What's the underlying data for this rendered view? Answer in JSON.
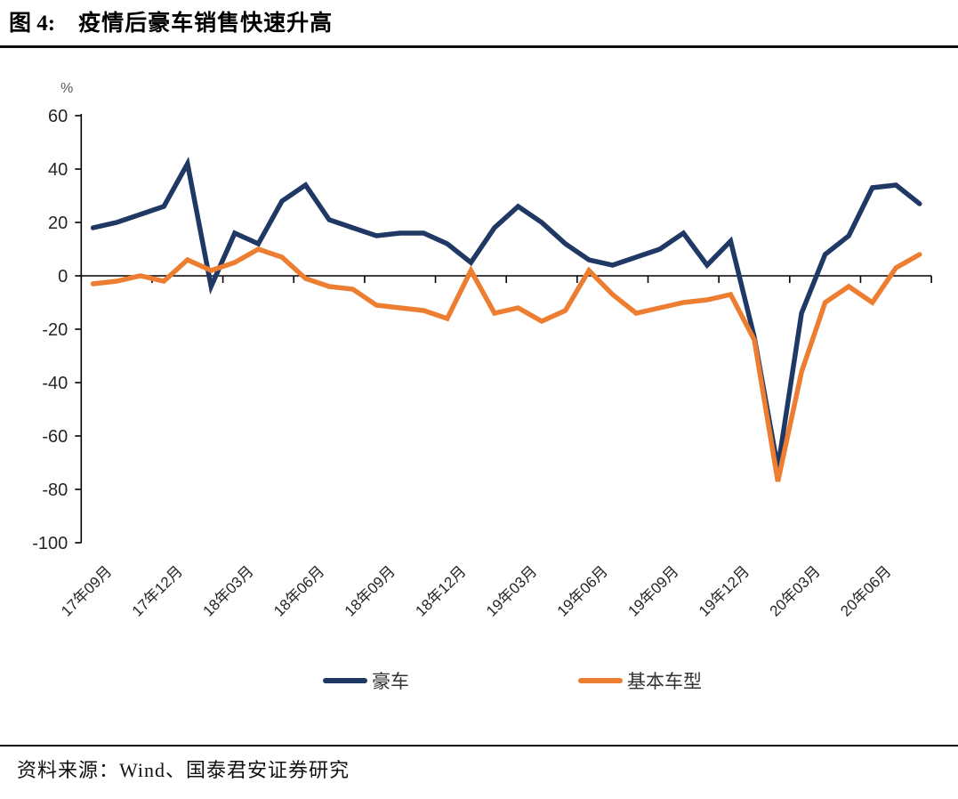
{
  "header": {
    "figure_label": "图 4:",
    "title": "疫情后豪车销售快速升高"
  },
  "chart_data": {
    "type": "line",
    "title": "疫情后豪车销售快速升高",
    "unit_label": "%",
    "ylim": [
      -100,
      60
    ],
    "y_ticks": [
      60,
      40,
      20,
      0,
      -20,
      -40,
      -60,
      -80,
      -100
    ],
    "grid": false,
    "legend_position": "bottom",
    "categories": [
      "17年09月",
      "17年10月",
      "17年11月",
      "17年12月",
      "18年01月",
      "18年02月",
      "18年03月",
      "18年04月",
      "18年05月",
      "18年06月",
      "18年07月",
      "18年08月",
      "18年09月",
      "18年10月",
      "18年11月",
      "18年12月",
      "19年01月",
      "19年02月",
      "19年03月",
      "19年04月",
      "19年05月",
      "19年06月",
      "19年07月",
      "19年08月",
      "19年09月",
      "19年10月",
      "19年11月",
      "19年12月",
      "20年01月",
      "20年02月",
      "20年03月",
      "20年04月",
      "20年05月",
      "20年06月",
      "20年07月",
      "20年08月"
    ],
    "x_tick_labels": [
      "17年09月",
      "17年12月",
      "18年03月",
      "18年06月",
      "18年09月",
      "18年12月",
      "19年03月",
      "19年06月",
      "19年09月",
      "19年12月",
      "20年03月",
      "20年06月"
    ],
    "series": [
      {
        "name": "豪车",
        "color": "#1f3864",
        "values": [
          18,
          20,
          23,
          26,
          42,
          -4,
          16,
          12,
          28,
          34,
          21,
          18,
          15,
          16,
          16,
          12,
          5,
          18,
          26,
          20,
          12,
          6,
          4,
          7,
          10,
          16,
          4,
          13,
          -23,
          -72,
          -14,
          8,
          15,
          33,
          34,
          27
        ]
      },
      {
        "name": "基本车型",
        "color": "#ed7d31",
        "values": [
          -3,
          -2,
          0,
          -2,
          6,
          2,
          5,
          10,
          7,
          -1,
          -4,
          -5,
          -11,
          -12,
          -13,
          -16,
          2,
          -14,
          -12,
          -17,
          -13,
          2,
          -7,
          -14,
          -12,
          -10,
          -9,
          -7,
          -24,
          -77,
          -36,
          -10,
          -4,
          -10,
          3,
          8
        ]
      }
    ]
  },
  "footer": {
    "source": "资料来源：Wind、国泰君安证券研究"
  }
}
